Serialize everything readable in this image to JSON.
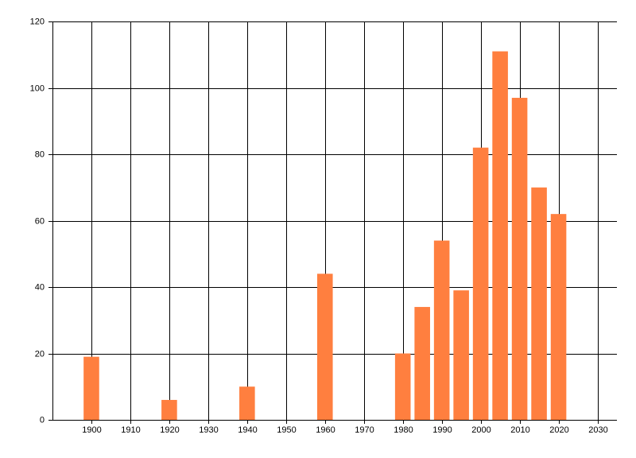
{
  "chart_data": {
    "type": "bar",
    "x": [
      1900,
      1920,
      1940,
      1960,
      1980,
      1985,
      1990,
      1995,
      2000,
      2005,
      2010,
      2015,
      2020
    ],
    "values": [
      19,
      6,
      10,
      44,
      20,
      34,
      54,
      39,
      82,
      111,
      97,
      70,
      62
    ],
    "color": "#ff7f3f",
    "xlim": [
      1890,
      2035
    ],
    "xticks": [
      1900,
      1910,
      1920,
      1930,
      1940,
      1950,
      1960,
      1970,
      1980,
      1990,
      2000,
      2010,
      2020,
      2030
    ],
    "ylim": [
      0,
      120
    ],
    "yticks": [
      0,
      20,
      40,
      60,
      80,
      100,
      120
    ],
    "grid": true
  }
}
